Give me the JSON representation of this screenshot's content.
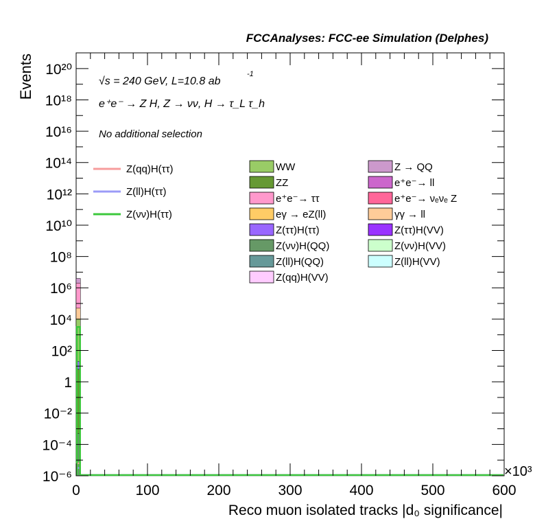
{
  "header": {
    "title": "FCCAnalyses: FCC-ee Simulation (Delphes)",
    "energy_line": "√s = 240 GeV, L=10.8 ab",
    "energy_line_superscript": "-1",
    "process_line": "e⁺e⁻ → Z H, Z → νν, H → τ_L τ_h",
    "selection": "No additional selection"
  },
  "chart_data": {
    "type": "histogram",
    "xlabel": "Reco muon isolated tracks |d₀ significance|",
    "ylabel": "Events",
    "x_multiplier": "×10³",
    "xlim": [
      0,
      600
    ],
    "ylim_log10": [
      -6,
      21
    ],
    "yscale": "log",
    "x_ticks": [
      "0",
      "100",
      "200",
      "300",
      "400",
      "500",
      "600"
    ],
    "y_ticks": [
      {
        "exp": 20,
        "label": "10²⁰"
      },
      {
        "exp": 18,
        "label": "10¹⁸"
      },
      {
        "exp": 16,
        "label": "10¹⁶"
      },
      {
        "exp": 14,
        "label": "10¹⁴"
      },
      {
        "exp": 12,
        "label": "10¹²"
      },
      {
        "exp": 10,
        "label": "10¹⁰"
      },
      {
        "exp": 8,
        "label": "10⁸"
      },
      {
        "exp": 6,
        "label": "10⁶"
      },
      {
        "exp": 4,
        "label": "10⁴"
      },
      {
        "exp": 2,
        "label": "10²"
      },
      {
        "exp": 0,
        "label": "1"
      },
      {
        "exp": -2,
        "label": "10⁻²"
      },
      {
        "exp": -4,
        "label": "10⁻⁴"
      },
      {
        "exp": -6,
        "label": "10⁻⁶"
      }
    ],
    "first_bin": {
      "x_range": [
        0,
        6
      ],
      "stack": [
        {
          "name": "Z(νν)H(QQ)",
          "top_exp": -3.3
        },
        {
          "name": "ZZ",
          "top_exp": 0.8
        },
        {
          "name": "Z(ττ)H(ττ)",
          "top_exp": 1.3
        },
        {
          "name": "WW",
          "top_exp": 4.0
        },
        {
          "name": "γγ → ll",
          "top_exp": 4.7
        },
        {
          "name": "e⁺e⁻→ ττ",
          "top_exp": 6.3
        },
        {
          "name": "Z → QQ",
          "top_exp": 6.6
        }
      ]
    },
    "signal_lines": [
      {
        "name": "Z(qq)H(ττ)",
        "color": "#f79c9c",
        "top_exp": -5.2
      },
      {
        "name": "Z(ll)H(ττ)",
        "color": "#9b9bf7",
        "top_exp": -5.5
      },
      {
        "name": "Z(νν)H(ττ)",
        "color": "#3cc83c",
        "top_exp": 3.5
      }
    ],
    "legend_signals": [
      {
        "name": "Z(qq)H(ττ)",
        "color": "#f79c9c"
      },
      {
        "name": "Z(ll)H(ττ)",
        "color": "#9b9bf7"
      },
      {
        "name": "Z(νν)H(ττ)",
        "color": "#3cc83c"
      }
    ],
    "legend_backgrounds_col1": [
      {
        "name": "WW",
        "color": "#99cc66"
      },
      {
        "name": "ZZ",
        "color": "#669933"
      },
      {
        "name": "e⁺e⁻→ ττ",
        "color": "#ff99cc"
      },
      {
        "name": "eγ → eZ(ll)",
        "color": "#ffcc66"
      },
      {
        "name": "Z(ττ)H(ττ)",
        "color": "#9966ff"
      },
      {
        "name": "Z(νν)H(QQ)",
        "color": "#669966"
      },
      {
        "name": "Z(ll)H(QQ)",
        "color": "#669999"
      },
      {
        "name": "Z(qq)H(VV)",
        "color": "#ffccff"
      }
    ],
    "legend_backgrounds_col2": [
      {
        "name": "Z → QQ",
        "color": "#cc99cc"
      },
      {
        "name": "e⁺e⁻→ ll",
        "color": "#cc66cc"
      },
      {
        "name": "e⁺e⁻→ νₑνₑ Z",
        "color": "#ff6699"
      },
      {
        "name": "γγ → ll",
        "color": "#ffcc99"
      },
      {
        "name": "Z(ττ)H(VV)",
        "color": "#9933ff"
      },
      {
        "name": "Z(νν)H(VV)",
        "color": "#ccffcc"
      },
      {
        "name": "Z(ll)H(VV)",
        "color": "#ccffff"
      }
    ]
  }
}
